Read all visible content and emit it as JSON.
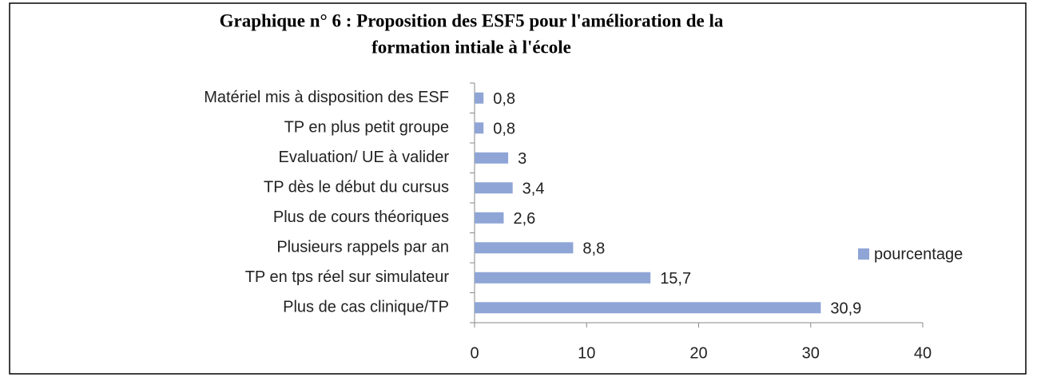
{
  "chart_data": {
    "type": "hbar",
    "title": [
      "Graphique n° 6 : Proposition des ESF5 pour l'amélioration de la",
      "formation intiale à l'école"
    ],
    "categories": [
      "Matériel mis à disposition des ESF",
      "TP en plus petit groupe",
      "Evaluation/ UE à valider",
      "TP dès le début du cursus",
      "Plus de cours théoriques",
      "Plusieurs rappels par an",
      "TP en tps réel sur simulateur",
      "Plus de cas clinique/TP"
    ],
    "series": [
      {
        "name": "pourcentage",
        "color": "#8fa5d6",
        "values": [
          0.8,
          0.8,
          3,
          3.4,
          2.6,
          8.8,
          15.7,
          30.9
        ],
        "value_labels": [
          "0,8",
          "0,8",
          "3",
          "3,4",
          "2,6",
          "8,8",
          "15,7",
          "30,9"
        ]
      }
    ],
    "xlim": [
      0,
      40
    ],
    "xticks": [
      0,
      10,
      20,
      30,
      40
    ],
    "legend": "right"
  }
}
